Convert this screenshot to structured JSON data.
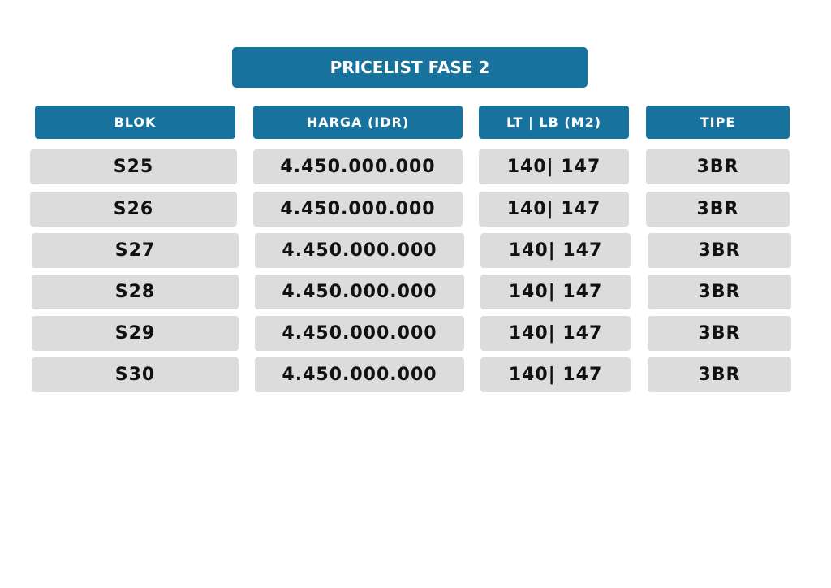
{
  "title": "PRICELIST FASE 2",
  "colors": {
    "header_bg": "#17729e",
    "cell_bg": "#dcdcdd"
  },
  "columns": [
    "BLOK",
    "HARGA (IDR)",
    "LT | LB (M2)",
    "TIPE"
  ],
  "rows": [
    [
      "S25",
      "4.450.000.000",
      "140| 147",
      "3BR"
    ],
    [
      "S26",
      "4.450.000.000",
      "140| 147",
      "3BR"
    ],
    [
      "S27",
      "4.450.000.000",
      "140| 147",
      "3BR"
    ],
    [
      "S28",
      "4.450.000.000",
      "140| 147",
      "3BR"
    ],
    [
      "S29",
      "4.450.000.000",
      "140| 147",
      "3BR"
    ],
    [
      "S30",
      "4.450.000.000",
      "140| 147",
      "3BR"
    ]
  ]
}
